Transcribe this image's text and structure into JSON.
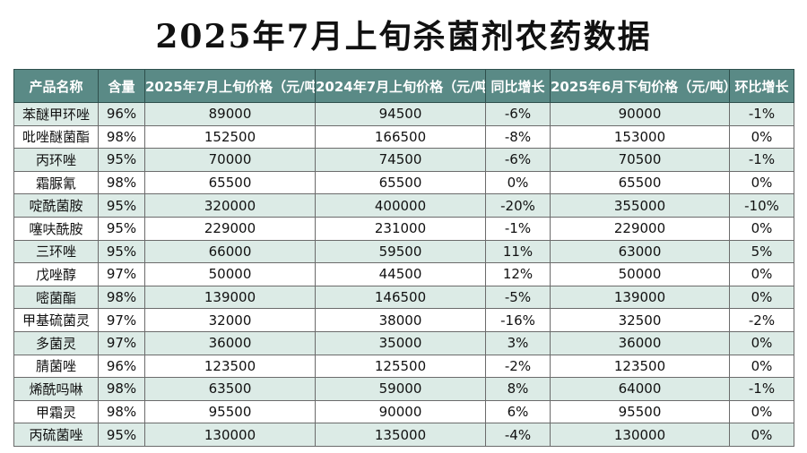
{
  "title": "2025年7月上旬杀菌剂农药数据",
  "headers": [
    "产品名称",
    "含量",
    "2025年7月上旬价格（元/吨）",
    "2024年7月上旬价格（元/吨）",
    "同比增长",
    "2025年6月下旬价格（元/吨）",
    "环比增长"
  ],
  "rows": [
    [
      "苯醚甲环唑",
      "96%",
      "89000",
      "94500",
      "-6%",
      "90000",
      "-1%"
    ],
    [
      "吡唑醚菌酯",
      "98%",
      "152500",
      "166500",
      "-8%",
      "153000",
      "0%"
    ],
    [
      "丙环唑",
      "95%",
      "70000",
      "74500",
      "-6%",
      "70500",
      "-1%"
    ],
    [
      "霜脲氰",
      "98%",
      "65500",
      "65500",
      "0%",
      "65500",
      "0%"
    ],
    [
      "啶酰菌胺",
      "95%",
      "320000",
      "400000",
      "-20%",
      "355000",
      "-10%"
    ],
    [
      "噻呋酰胺",
      "95%",
      "229000",
      "231000",
      "-1%",
      "229000",
      "0%"
    ],
    [
      "三环唑",
      "95%",
      "66000",
      "59500",
      "11%",
      "63000",
      "5%"
    ],
    [
      "戊唑醇",
      "97%",
      "50000",
      "44500",
      "12%",
      "50000",
      "0%"
    ],
    [
      "嘧菌酯",
      "98%",
      "139000",
      "146500",
      "-5%",
      "139000",
      "0%"
    ],
    [
      "甲基硫菌灵",
      "97%",
      "32000",
      "38000",
      "-16%",
      "32500",
      "-2%"
    ],
    [
      "多菌灵",
      "97%",
      "36000",
      "35000",
      "3%",
      "36000",
      "0%"
    ],
    [
      "腈菌唑",
      "96%",
      "123500",
      "125500",
      "-2%",
      "123500",
      "0%"
    ],
    [
      "烯酰吗啉",
      "98%",
      "63500",
      "59000",
      "8%",
      "64000",
      "-1%"
    ],
    [
      "甲霜灵",
      "98%",
      "95500",
      "90000",
      "6%",
      "95500",
      "0%"
    ],
    [
      "丙硫菌唑",
      "95%",
      "130000",
      "135000",
      "-4%",
      "130000",
      "0%"
    ]
  ]
}
